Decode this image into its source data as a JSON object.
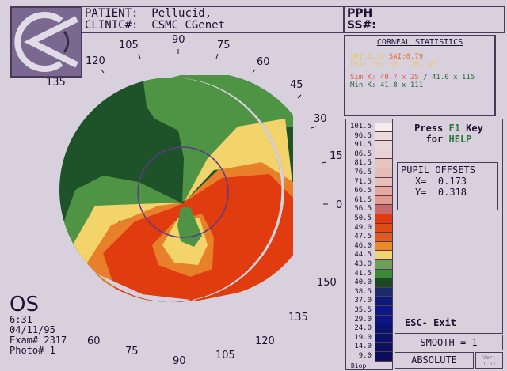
{
  "header": {
    "patient_label": "PATIENT:",
    "patient_value": "Pellucid,",
    "clinic_label": "CLINIC#:",
    "clinic_value": "CSMC CGenet",
    "right_line1": "PPH",
    "right_line2": "SS#:"
  },
  "stats": {
    "title": "CORNEAL STATISTICS",
    "sri": "SRI:1.11",
    "sai": "SAI:0.79",
    "pva": "PVA: 20/ 30 - 20/ 40",
    "simk_label": "Sim K:",
    "simk_value": "40.7 x  25",
    "simk_value2": "/ 41.0 x 115",
    "mink_label": "Min K:",
    "mink_value": "41.8 x 111"
  },
  "angles_top": [
    "135",
    "120",
    "105",
    "90",
    "75",
    "60",
    "45",
    "30",
    "15",
    "0"
  ],
  "angles_bottom": [
    "150",
    "135",
    "120",
    "105",
    "90",
    "75",
    "60"
  ],
  "scale": {
    "labels": [
      "101.5",
      "96.5",
      "91.5",
      "86.5",
      "81.5",
      "76.5",
      "71.5",
      "66.5",
      "61.5",
      "56.5",
      "50.5",
      "49.0",
      "47.5",
      "46.0",
      "44.5",
      "43.0",
      "41.5",
      "40.0",
      "38.5",
      "37.0",
      "35.5",
      "29.0",
      "24.0",
      "19.0",
      "14.0",
      "9.0"
    ],
    "colors": [
      "#f4eef0",
      "#ecdcde",
      "#e8d6d8",
      "#e6d2d4",
      "#e8c4c0",
      "#e6bcb6",
      "#e8c0ba",
      "#e4a89c",
      "#e09a90",
      "#c86a6a",
      "#e03a10",
      "#e04a14",
      "#e05a1c",
      "#e88a2a",
      "#f0d470",
      "#6aa05a",
      "#3a8a3a",
      "#1a4a22",
      "#1a2a6a",
      "#0c1a80",
      "#0c1a88",
      "#0c1680",
      "#0a1470",
      "#0a1268",
      "#0a1060",
      "#0a0e58"
    ],
    "unit": "Diop"
  },
  "help": {
    "press": "Press",
    "key": "F1",
    "key_suffix": "Key",
    "for": "for",
    "help": "HELP"
  },
  "pupil": {
    "title": "PUPIL OFFSETS",
    "x_label": "X=",
    "x_value": "0.173",
    "y_label": "Y=",
    "y_value": "0.318"
  },
  "esc": "ESC- Exit",
  "smooth": "SMOOTH = 1",
  "mode": "ABSOLUTE",
  "version": "Ver: 1.61",
  "exam": {
    "eye": "OS",
    "time": "6:31",
    "date": "04/11/95",
    "exam": "Exam# 2317",
    "photo": "Photo# 1"
  },
  "colors": {
    "background": "#d9d0de",
    "dark_green": "#1e5228",
    "green": "#4f9445",
    "yellow": "#f2d46a",
    "orange": "#e8802a",
    "red": "#e03c10",
    "pupil_circle": "#5a3a8a"
  }
}
